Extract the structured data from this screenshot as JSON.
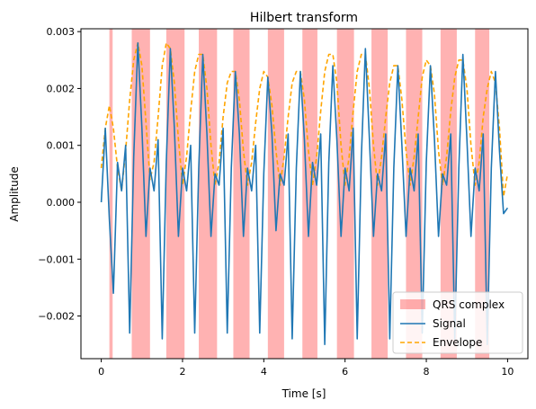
{
  "chart_data": {
    "type": "line",
    "title": "Hilbert transform",
    "xlabel": "Time [s]",
    "ylabel": "Amplitude",
    "xlim": [
      -0.5,
      10.5
    ],
    "ylim": [
      -0.00275,
      0.00305
    ],
    "xticks": [
      0,
      2,
      4,
      6,
      8,
      10
    ],
    "xtick_labels": [
      "0",
      "2",
      "4",
      "6",
      "8",
      "10"
    ],
    "yticks": [
      -0.002,
      -0.001,
      0.0,
      0.001,
      0.002,
      0.003
    ],
    "ytick_labels": [
      "−0.002",
      "−0.001",
      "0.000",
      "0.001",
      "0.002",
      "0.003"
    ],
    "grid": false,
    "legend_position": "lower-right",
    "qrs_regions": [
      [
        0.2,
        0.28
      ],
      [
        0.75,
        1.2
      ],
      [
        1.6,
        2.05
      ],
      [
        2.4,
        2.85
      ],
      [
        3.25,
        3.65
      ],
      [
        4.1,
        4.5
      ],
      [
        4.95,
        5.32
      ],
      [
        5.8,
        6.22
      ],
      [
        6.65,
        7.05
      ],
      [
        7.5,
        7.9
      ],
      [
        8.35,
        8.75
      ],
      [
        9.2,
        9.55
      ]
    ],
    "series": [
      {
        "name": "Signal",
        "color": "#1f77b4",
        "style": "solid",
        "x": [
          0,
          0.1,
          0.2,
          0.3,
          0.4,
          0.5,
          0.6,
          0.7,
          0.8,
          0.9,
          1.0,
          1.1,
          1.2,
          1.3,
          1.4,
          1.5,
          1.6,
          1.7,
          1.8,
          1.9,
          2.0,
          2.1,
          2.2,
          2.3,
          2.4,
          2.5,
          2.6,
          2.7,
          2.8,
          2.9,
          3.0,
          3.1,
          3.2,
          3.3,
          3.4,
          3.5,
          3.6,
          3.7,
          3.8,
          3.9,
          4.0,
          4.1,
          4.2,
          4.3,
          4.4,
          4.5,
          4.6,
          4.7,
          4.8,
          4.9,
          5.0,
          5.1,
          5.2,
          5.3,
          5.4,
          5.5,
          5.6,
          5.7,
          5.8,
          5.9,
          6.0,
          6.1,
          6.2,
          6.3,
          6.4,
          6.5,
          6.6,
          6.7,
          6.8,
          6.9,
          7.0,
          7.1,
          7.2,
          7.3,
          7.4,
          7.5,
          7.6,
          7.7,
          7.8,
          7.9,
          8.0,
          8.1,
          8.2,
          8.3,
          8.4,
          8.5,
          8.6,
          8.7,
          8.8,
          8.9,
          9.0,
          9.1,
          9.2,
          9.3,
          9.4,
          9.5,
          9.6,
          9.7,
          9.8,
          9.9,
          10.0
        ],
        "values": [
          0.0,
          0.0013,
          -0.0003,
          -0.0016,
          0.0007,
          0.0002,
          0.001,
          -0.0023,
          0.0008,
          0.0028,
          0.0013,
          -0.0006,
          0.0006,
          0.0002,
          0.0011,
          -0.0024,
          0.0007,
          0.0027,
          0.0013,
          -0.0006,
          0.0006,
          0.0002,
          0.001,
          -0.0023,
          0.0006,
          0.0026,
          0.0012,
          -0.0006,
          0.0005,
          0.0003,
          0.0013,
          -0.0023,
          0.0006,
          0.0023,
          0.0012,
          -0.0006,
          0.0006,
          0.0002,
          0.001,
          -0.0023,
          0.0005,
          0.0022,
          0.0012,
          -0.0005,
          0.0005,
          0.0003,
          0.0012,
          -0.0024,
          0.0006,
          0.0023,
          0.0011,
          -0.0006,
          0.0007,
          0.0003,
          0.0012,
          -0.0025,
          0.0007,
          0.0024,
          0.0011,
          -0.0006,
          0.0006,
          0.0002,
          0.0013,
          -0.0024,
          0.0008,
          0.0027,
          0.0011,
          -0.0006,
          0.0005,
          0.0002,
          0.0012,
          -0.0024,
          0.0006,
          0.0024,
          0.001,
          -0.0006,
          0.0006,
          0.0002,
          0.0012,
          -0.0023,
          0.0007,
          0.0024,
          0.0011,
          -0.0006,
          0.0005,
          0.0003,
          0.0012,
          -0.0024,
          0.0006,
          0.0026,
          0.0011,
          -0.0006,
          0.0006,
          0.0002,
          0.0012,
          -0.0025,
          0.0006,
          0.0023,
          0.0009,
          -0.0002,
          -0.0001
        ]
      },
      {
        "name": "Envelope",
        "color": "#ffa500",
        "style": "dashed",
        "x": [
          0,
          0.1,
          0.2,
          0.3,
          0.4,
          0.5,
          0.6,
          0.7,
          0.8,
          0.9,
          1.0,
          1.1,
          1.2,
          1.3,
          1.4,
          1.5,
          1.6,
          1.7,
          1.8,
          1.9,
          2.0,
          2.1,
          2.2,
          2.3,
          2.4,
          2.5,
          2.6,
          2.7,
          2.8,
          2.9,
          3.0,
          3.1,
          3.2,
          3.3,
          3.4,
          3.5,
          3.6,
          3.7,
          3.8,
          3.9,
          4.0,
          4.1,
          4.2,
          4.3,
          4.4,
          4.5,
          4.6,
          4.7,
          4.8,
          4.9,
          5.0,
          5.1,
          5.2,
          5.3,
          5.4,
          5.5,
          5.6,
          5.7,
          5.8,
          5.9,
          6.0,
          6.1,
          6.2,
          6.3,
          6.4,
          6.5,
          6.6,
          6.7,
          6.8,
          6.9,
          7.0,
          7.1,
          7.2,
          7.3,
          7.4,
          7.5,
          7.6,
          7.7,
          7.8,
          7.9,
          8.0,
          8.1,
          8.2,
          8.3,
          8.4,
          8.5,
          8.6,
          8.7,
          8.8,
          8.9,
          9.0,
          9.1,
          9.2,
          9.3,
          9.4,
          9.5,
          9.6,
          9.7,
          9.8,
          9.9,
          10.0
        ],
        "values": [
          0.0006,
          0.0013,
          0.0017,
          0.0013,
          0.0006,
          0.0002,
          0.0009,
          0.0018,
          0.0025,
          0.0028,
          0.0024,
          0.0014,
          0.0004,
          0.0007,
          0.0015,
          0.0024,
          0.0028,
          0.0027,
          0.0021,
          0.0011,
          0.0003,
          0.0008,
          0.0016,
          0.0023,
          0.0026,
          0.0026,
          0.002,
          0.001,
          0.0003,
          0.0007,
          0.0015,
          0.0021,
          0.0023,
          0.0023,
          0.0018,
          0.0009,
          0.0003,
          0.0007,
          0.0014,
          0.002,
          0.0023,
          0.0022,
          0.0017,
          0.0009,
          0.0003,
          0.0008,
          0.0015,
          0.0021,
          0.0023,
          0.0023,
          0.0018,
          0.0009,
          0.0003,
          0.0008,
          0.0016,
          0.0023,
          0.0026,
          0.0026,
          0.0021,
          0.001,
          0.0003,
          0.0008,
          0.0016,
          0.0023,
          0.0026,
          0.0026,
          0.002,
          0.001,
          0.0003,
          0.0008,
          0.0015,
          0.0021,
          0.0024,
          0.0024,
          0.0018,
          0.0009,
          0.0003,
          0.0008,
          0.0015,
          0.0022,
          0.0025,
          0.0024,
          0.0019,
          0.0009,
          0.0003,
          0.0008,
          0.0016,
          0.0022,
          0.0025,
          0.0025,
          0.002,
          0.001,
          0.0003,
          0.0007,
          0.0015,
          0.002,
          0.0023,
          0.0021,
          0.0013,
          0.0001,
          0.0005
        ]
      }
    ],
    "legend": [
      {
        "label": "QRS complex",
        "kind": "patch",
        "color": "#ff0000"
      },
      {
        "label": "Signal",
        "kind": "line",
        "color": "#1f77b4"
      },
      {
        "label": "Envelope",
        "kind": "dashed",
        "color": "#ffa500"
      }
    ]
  }
}
